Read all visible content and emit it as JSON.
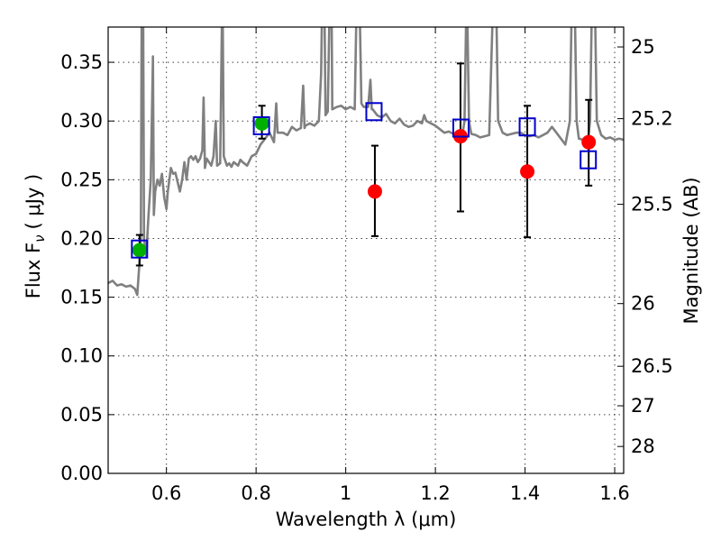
{
  "chart_data": {
    "type": "scatter",
    "xlabel": "Wavelength  λ (μm)",
    "ylabel_left": "Flux  F",
    "ylabel_left_sub": "ν",
    "ylabel_left_unit": "( μJy )",
    "ylabel_right": "Magnitude (AB)",
    "xlim": [
      0.47,
      1.62
    ],
    "ylim": [
      0.0,
      0.38
    ],
    "grid": true,
    "x_ticks": [
      {
        "value": 0.6,
        "label": "0.6"
      },
      {
        "value": 0.8,
        "label": "0.8"
      },
      {
        "value": 1.0,
        "label": "1"
      },
      {
        "value": 1.2,
        "label": "1.2"
      },
      {
        "value": 1.4,
        "label": "1.4"
      },
      {
        "value": 1.6,
        "label": "1.6"
      }
    ],
    "y_ticks": [
      {
        "value": 0.0,
        "label": "0.00"
      },
      {
        "value": 0.05,
        "label": "0.05"
      },
      {
        "value": 0.1,
        "label": "0.10"
      },
      {
        "value": 0.15,
        "label": "0.15"
      },
      {
        "value": 0.2,
        "label": "0.20"
      },
      {
        "value": 0.25,
        "label": "0.25"
      },
      {
        "value": 0.3,
        "label": "0.30"
      },
      {
        "value": 0.35,
        "label": "0.35"
      }
    ],
    "right_ticks": [
      {
        "value": 25.0,
        "label": "25"
      },
      {
        "value": 25.2,
        "label": "25.2"
      },
      {
        "value": 25.5,
        "label": "25.5"
      },
      {
        "value": 26.0,
        "label": "26"
      },
      {
        "value": 26.5,
        "label": "26.5"
      },
      {
        "value": 27.0,
        "label": "27"
      },
      {
        "value": 28.0,
        "label": "28"
      }
    ],
    "series": [
      {
        "kind": "model_spectrum",
        "color": "#808080",
        "points": [
          [
            0.47,
            0.162
          ],
          [
            0.48,
            0.164
          ],
          [
            0.49,
            0.16
          ],
          [
            0.5,
            0.161
          ],
          [
            0.51,
            0.159
          ],
          [
            0.52,
            0.16
          ],
          [
            0.53,
            0.157
          ],
          [
            0.535,
            0.152
          ],
          [
            0.54,
            0.18
          ],
          [
            0.543,
            0.2
          ],
          [
            0.545,
            0.41
          ],
          [
            0.548,
            0.4
          ],
          [
            0.55,
            0.2
          ],
          [
            0.555,
            0.185
          ],
          [
            0.56,
            0.22
          ],
          [
            0.565,
            0.25
          ],
          [
            0.57,
            0.355
          ],
          [
            0.572,
            0.22
          ],
          [
            0.575,
            0.24
          ],
          [
            0.58,
            0.25
          ],
          [
            0.585,
            0.245
          ],
          [
            0.59,
            0.255
          ],
          [
            0.595,
            0.235
          ],
          [
            0.6,
            0.225
          ],
          [
            0.603,
            0.24
          ],
          [
            0.61,
            0.26
          ],
          [
            0.615,
            0.255
          ],
          [
            0.62,
            0.256
          ],
          [
            0.625,
            0.248
          ],
          [
            0.63,
            0.24
          ],
          [
            0.635,
            0.25
          ],
          [
            0.64,
            0.265
          ],
          [
            0.645,
            0.25
          ],
          [
            0.65,
            0.268
          ],
          [
            0.655,
            0.27
          ],
          [
            0.66,
            0.267
          ],
          [
            0.665,
            0.27
          ],
          [
            0.67,
            0.265
          ],
          [
            0.675,
            0.268
          ],
          [
            0.68,
            0.275
          ],
          [
            0.683,
            0.32
          ],
          [
            0.686,
            0.26
          ],
          [
            0.69,
            0.268
          ],
          [
            0.7,
            0.262
          ],
          [
            0.705,
            0.27
          ],
          [
            0.71,
            0.3
          ],
          [
            0.713,
            0.262
          ],
          [
            0.72,
            0.264
          ],
          [
            0.725,
            0.42
          ],
          [
            0.728,
            0.27
          ],
          [
            0.735,
            0.262
          ],
          [
            0.74,
            0.264
          ],
          [
            0.745,
            0.261
          ],
          [
            0.75,
            0.265
          ],
          [
            0.76,
            0.262
          ],
          [
            0.765,
            0.267
          ],
          [
            0.77,
            0.265
          ],
          [
            0.78,
            0.262
          ],
          [
            0.79,
            0.27
          ],
          [
            0.8,
            0.272
          ],
          [
            0.81,
            0.28
          ],
          [
            0.82,
            0.285
          ],
          [
            0.83,
            0.29
          ],
          [
            0.84,
            0.282
          ],
          [
            0.845,
            0.315
          ],
          [
            0.848,
            0.29
          ],
          [
            0.85,
            0.29
          ],
          [
            0.86,
            0.29
          ],
          [
            0.87,
            0.288
          ],
          [
            0.88,
            0.295
          ],
          [
            0.89,
            0.292
          ],
          [
            0.9,
            0.294
          ],
          [
            0.905,
            0.33
          ],
          [
            0.908,
            0.294
          ],
          [
            0.91,
            0.296
          ],
          [
            0.92,
            0.298
          ],
          [
            0.93,
            0.296
          ],
          [
            0.94,
            0.3
          ],
          [
            0.945,
            0.34
          ],
          [
            0.948,
            0.42
          ],
          [
            0.952,
            0.42
          ],
          [
            0.955,
            0.305
          ],
          [
            0.96,
            0.308
          ],
          [
            0.965,
            0.42
          ],
          [
            0.968,
            0.42
          ],
          [
            0.97,
            0.31
          ],
          [
            0.98,
            0.312
          ],
          [
            0.99,
            0.313
          ],
          [
            1.0,
            0.31
          ],
          [
            1.01,
            0.312
          ],
          [
            1.02,
            0.31
          ],
          [
            1.025,
            0.42
          ],
          [
            1.03,
            0.42
          ],
          [
            1.035,
            0.315
          ],
          [
            1.04,
            0.312
          ],
          [
            1.05,
            0.312
          ],
          [
            1.055,
            0.335
          ],
          [
            1.058,
            0.31
          ],
          [
            1.06,
            0.31
          ],
          [
            1.07,
            0.305
          ],
          [
            1.08,
            0.303
          ],
          [
            1.09,
            0.306
          ],
          [
            1.1,
            0.3
          ],
          [
            1.11,
            0.298
          ],
          [
            1.12,
            0.302
          ],
          [
            1.13,
            0.297
          ],
          [
            1.14,
            0.295
          ],
          [
            1.15,
            0.296
          ],
          [
            1.16,
            0.3
          ],
          [
            1.17,
            0.298
          ],
          [
            1.175,
            0.305
          ],
          [
            1.18,
            0.3
          ],
          [
            1.19,
            0.298
          ],
          [
            1.2,
            0.296
          ],
          [
            1.21,
            0.293
          ],
          [
            1.22,
            0.29
          ],
          [
            1.23,
            0.291
          ],
          [
            1.24,
            0.289
          ],
          [
            1.25,
            0.288
          ],
          [
            1.26,
            0.287
          ],
          [
            1.265,
            0.3
          ],
          [
            1.27,
            0.42
          ],
          [
            1.275,
            0.3
          ],
          [
            1.28,
            0.289
          ],
          [
            1.29,
            0.288
          ],
          [
            1.3,
            0.286
          ],
          [
            1.31,
            0.287
          ],
          [
            1.32,
            0.288
          ],
          [
            1.33,
            0.42
          ],
          [
            1.335,
            0.42
          ],
          [
            1.34,
            0.3
          ],
          [
            1.35,
            0.29
          ],
          [
            1.36,
            0.288
          ],
          [
            1.37,
            0.289
          ],
          [
            1.38,
            0.29
          ],
          [
            1.39,
            0.29
          ],
          [
            1.4,
            0.288
          ],
          [
            1.41,
            0.287
          ],
          [
            1.42,
            0.288
          ],
          [
            1.43,
            0.286
          ],
          [
            1.44,
            0.288
          ],
          [
            1.45,
            0.29
          ],
          [
            1.46,
            0.295
          ],
          [
            1.47,
            0.29
          ],
          [
            1.48,
            0.285
          ],
          [
            1.49,
            0.28
          ],
          [
            1.5,
            0.3
          ],
          [
            1.505,
            0.42
          ],
          [
            1.51,
            0.42
          ],
          [
            1.515,
            0.3
          ],
          [
            1.52,
            0.285
          ],
          [
            1.53,
            0.284
          ],
          [
            1.54,
            0.282
          ],
          [
            1.545,
            0.3
          ],
          [
            1.55,
            0.42
          ],
          [
            1.555,
            0.42
          ],
          [
            1.56,
            0.3
          ],
          [
            1.57,
            0.288
          ],
          [
            1.58,
            0.285
          ],
          [
            1.59,
            0.286
          ],
          [
            1.6,
            0.284
          ],
          [
            1.61,
            0.285
          ],
          [
            1.62,
            0.284
          ]
        ]
      },
      {
        "kind": "observed_green",
        "color": "#00b000",
        "points": [
          {
            "x": 0.54,
            "y": 0.19,
            "yerr_low": 0.177,
            "yerr_high": 0.203
          },
          {
            "x": 0.813,
            "y": 0.298,
            "yerr_low": 0.285,
            "yerr_high": 0.313
          }
        ]
      },
      {
        "kind": "observed_red",
        "color": "#ff0000",
        "points": [
          {
            "x": 1.065,
            "y": 0.24,
            "yerr_low": 0.202,
            "yerr_high": 0.279
          },
          {
            "x": 1.256,
            "y": 0.287,
            "yerr_low": 0.223,
            "yerr_high": 0.349
          },
          {
            "x": 1.405,
            "y": 0.257,
            "yerr_low": 0.201,
            "yerr_high": 0.313
          },
          {
            "x": 1.542,
            "y": 0.282,
            "yerr_low": 0.245,
            "yerr_high": 0.318
          }
        ]
      },
      {
        "kind": "model_boxes",
        "color": "#0000cc",
        "points": [
          {
            "x": 0.54,
            "y": 0.191
          },
          {
            "x": 0.812,
            "y": 0.296
          },
          {
            "x": 1.063,
            "y": 0.308
          },
          {
            "x": 1.257,
            "y": 0.294
          },
          {
            "x": 1.405,
            "y": 0.295
          },
          {
            "x": 1.541,
            "y": 0.267
          }
        ]
      }
    ]
  }
}
